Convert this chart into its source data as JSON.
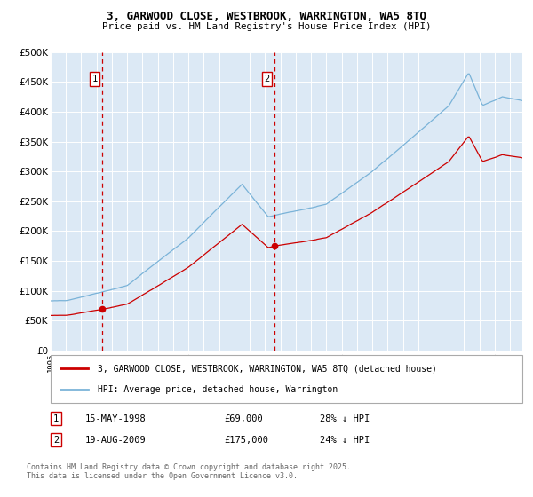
{
  "title_line1": "3, GARWOOD CLOSE, WESTBROOK, WARRINGTON, WA5 8TQ",
  "title_line2": "Price paid vs. HM Land Registry's House Price Index (HPI)",
  "ylim": [
    0,
    500000
  ],
  "yticks": [
    0,
    50000,
    100000,
    150000,
    200000,
    250000,
    300000,
    350000,
    400000,
    450000,
    500000
  ],
  "ytick_labels": [
    "£0",
    "£50K",
    "£100K",
    "£150K",
    "£200K",
    "£250K",
    "£300K",
    "£350K",
    "£400K",
    "£450K",
    "£500K"
  ],
  "xlim_start": 1995.0,
  "xlim_end": 2025.8,
  "background_color": "#ffffff",
  "plot_bg_color": "#dce9f5",
  "grid_color": "#ffffff",
  "red_line_color": "#cc0000",
  "blue_line_color": "#7ab3d8",
  "vline_color": "#cc0000",
  "sale1_x": 1998.37,
  "sale1_y": 69000,
  "sale1_label": "1",
  "sale1_date": "15-MAY-1998",
  "sale1_price": "£69,000",
  "sale1_hpi": "28% ↓ HPI",
  "sale2_x": 2009.63,
  "sale2_y": 175000,
  "sale2_label": "2",
  "sale2_date": "19-AUG-2009",
  "sale2_price": "£175,000",
  "sale2_hpi": "24% ↓ HPI",
  "legend_line1": "3, GARWOOD CLOSE, WESTBROOK, WARRINGTON, WA5 8TQ (detached house)",
  "legend_line2": "HPI: Average price, detached house, Warrington",
  "footnote": "Contains HM Land Registry data © Crown copyright and database right 2025.\nThis data is licensed under the Open Government Licence v3.0."
}
